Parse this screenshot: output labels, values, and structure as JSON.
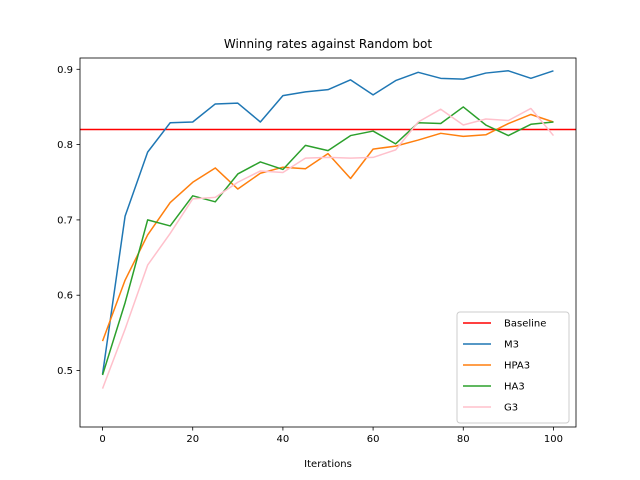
{
  "chart_data": {
    "type": "line",
    "title": "Winning rates against Random bot",
    "xlabel": "Iterations",
    "ylabel": "",
    "xlim": [
      -5,
      105
    ],
    "ylim": [
      0.425,
      0.915
    ],
    "xticks": [
      0,
      20,
      40,
      60,
      80,
      100
    ],
    "yticks": [
      0.5,
      0.6,
      0.7,
      0.8,
      0.9
    ],
    "grid": false,
    "legend_position": "lower-right",
    "baseline": {
      "name": "Baseline",
      "y": 0.82,
      "color": "#ff0000"
    },
    "x": [
      0,
      5,
      10,
      15,
      20,
      25,
      30,
      35,
      40,
      45,
      50,
      55,
      60,
      65,
      70,
      75,
      80,
      85,
      90,
      95,
      100
    ],
    "series": [
      {
        "name": "M3",
        "color": "#1f77b4",
        "values": [
          0.495,
          0.705,
          0.79,
          0.829,
          0.83,
          0.854,
          0.855,
          0.83,
          0.865,
          0.87,
          0.873,
          0.886,
          0.866,
          0.885,
          0.896,
          0.888,
          0.887,
          0.895,
          0.898,
          0.888,
          0.898
        ]
      },
      {
        "name": "HPA3",
        "color": "#ff7f0e",
        "values": [
          0.539,
          0.62,
          0.68,
          0.723,
          0.75,
          0.769,
          0.741,
          0.762,
          0.77,
          0.768,
          0.788,
          0.755,
          0.794,
          0.798,
          0.806,
          0.815,
          0.811,
          0.813,
          0.828,
          0.84,
          0.83
        ]
      },
      {
        "name": "HA3",
        "color": "#2ca02c",
        "values": [
          0.494,
          0.59,
          0.7,
          0.692,
          0.732,
          0.724,
          0.761,
          0.777,
          0.767,
          0.799,
          0.792,
          0.812,
          0.818,
          0.801,
          0.829,
          0.828,
          0.85,
          0.826,
          0.812,
          0.827,
          0.83
        ]
      },
      {
        "name": "G3",
        "color": "#ffc0cb",
        "values": [
          0.476,
          0.555,
          0.64,
          0.682,
          0.728,
          0.73,
          0.75,
          0.765,
          0.763,
          0.782,
          0.783,
          0.782,
          0.783,
          0.793,
          0.83,
          0.847,
          0.826,
          0.834,
          0.832,
          0.848,
          0.812
        ]
      }
    ]
  }
}
